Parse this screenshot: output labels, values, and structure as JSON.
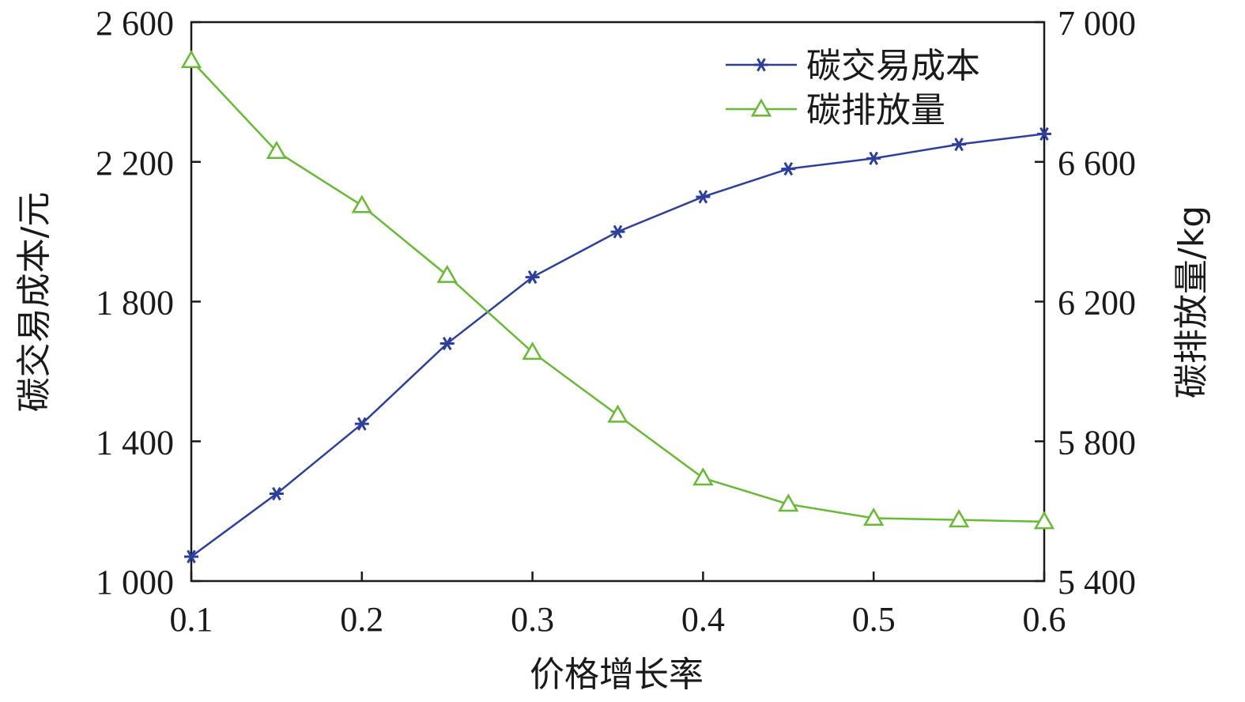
{
  "chart_data": {
    "type": "line",
    "title": "",
    "xlabel": "价格增长率",
    "ylabel_left": "碳交易成本/元",
    "ylabel_right": "碳排放量/kg",
    "x": [
      0.1,
      0.15,
      0.2,
      0.25,
      0.3,
      0.35,
      0.4,
      0.45,
      0.5,
      0.55,
      0.6
    ],
    "xlim": [
      0.1,
      0.6
    ],
    "xticks": [
      0.1,
      0.2,
      0.3,
      0.4,
      0.5,
      0.6
    ],
    "xtick_labels": [
      "0.1",
      "0.2",
      "0.3",
      "0.4",
      "0.5",
      "0.6"
    ],
    "ylim_left": [
      1000,
      2600
    ],
    "yticks_left": [
      1000,
      1400,
      1800,
      2200,
      2600
    ],
    "ytick_labels_left": [
      "1 000",
      "1 400",
      "1 800",
      "2 200",
      "2 600"
    ],
    "ylim_right": [
      5400,
      7000
    ],
    "yticks_right": [
      5400,
      5800,
      6200,
      6600,
      7000
    ],
    "ytick_labels_right": [
      "5 400",
      "5 800",
      "6 200",
      "6 600",
      "7 000"
    ],
    "grid": false,
    "legend_position": "top-right",
    "series": [
      {
        "name": "碳交易成本",
        "axis": "left",
        "color": "#2c3f9e",
        "marker": "asterisk",
        "values": [
          1070,
          1250,
          1450,
          1680,
          1870,
          2000,
          2100,
          2180,
          2210,
          2250,
          2280
        ]
      },
      {
        "name": "碳排放量",
        "axis": "right",
        "color": "#66bb33",
        "marker": "triangle",
        "values": [
          6890,
          6630,
          6475,
          6275,
          6055,
          5875,
          5695,
          5620,
          5580,
          5575,
          5570
        ]
      }
    ]
  }
}
